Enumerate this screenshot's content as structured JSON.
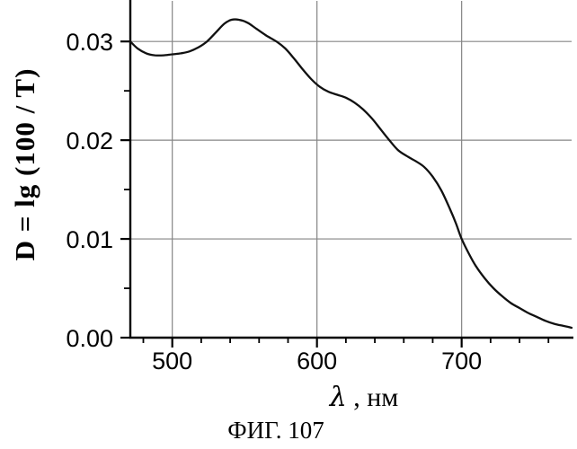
{
  "figure": {
    "caption": "ФИГ. 107"
  },
  "chart_data": {
    "type": "line",
    "title": "",
    "xlabel": "λ , нм",
    "xlabel_symbol": "λ",
    "xlabel_rest": " , нм",
    "ylabel": "D = lg (100 / T)",
    "xlim": [
      471,
      776
    ],
    "ylim": [
      0,
      0.0342
    ],
    "grid": true,
    "legend_position": "none",
    "x_ticks": [
      {
        "value": 500,
        "label": "500"
      },
      {
        "value": 600,
        "label": "600"
      },
      {
        "value": 700,
        "label": "700"
      }
    ],
    "x_minor_ticks": [
      480,
      520,
      540,
      560,
      580,
      620,
      640,
      660,
      680,
      720,
      740,
      760
    ],
    "y_ticks": [
      {
        "value": 0.0,
        "label": "0.00"
      },
      {
        "value": 0.01,
        "label": "0.01"
      },
      {
        "value": 0.02,
        "label": "0.02"
      },
      {
        "value": 0.03,
        "label": "0.03"
      }
    ],
    "y_minor_ticks": [
      0.005,
      0.015,
      0.025
    ],
    "grid_x_values": [
      500,
      600,
      700
    ],
    "grid_y_values": [
      0.01,
      0.02,
      0.03
    ],
    "series": [
      {
        "name": "spectral-absorbance-curve",
        "x": [
          471,
          476,
          482,
          488,
          494,
          500,
          506,
          512,
          518,
          524,
          530,
          536,
          541,
          546,
          552,
          558,
          565,
          572,
          578,
          584,
          590,
          596,
          602,
          608,
          614,
          620,
          626,
          632,
          638,
          644,
          650,
          656,
          662,
          668,
          674,
          680,
          686,
          692,
          696,
          700,
          705,
          710,
          716,
          722,
          728,
          734,
          740,
          746,
          752,
          758,
          764,
          770,
          776
        ],
        "y": [
          0.03,
          0.0293,
          0.0288,
          0.0286,
          0.0286,
          0.0287,
          0.0288,
          0.029,
          0.0294,
          0.03,
          0.0309,
          0.0318,
          0.0322,
          0.0322,
          0.0319,
          0.0313,
          0.0306,
          0.03,
          0.0293,
          0.0283,
          0.0272,
          0.0262,
          0.0254,
          0.0249,
          0.0246,
          0.0243,
          0.0238,
          0.0231,
          0.0222,
          0.0211,
          0.02,
          0.019,
          0.0184,
          0.0179,
          0.0173,
          0.0163,
          0.0149,
          0.013,
          0.0116,
          0.01,
          0.0085,
          0.0072,
          0.006,
          0.005,
          0.0042,
          0.0035,
          0.003,
          0.0025,
          0.0021,
          0.0017,
          0.0014,
          0.0012,
          0.001
        ]
      }
    ],
    "annotations": {
      "peak": {
        "x": 541,
        "y": 0.0322
      },
      "local_minimum": {
        "x": 491,
        "y": 0.0286
      },
      "shoulders_x": [
        620,
        670
      ]
    },
    "colors": {
      "curve": "#111111",
      "axis": "#000000",
      "grid": "#858585",
      "text": "#000000",
      "background": "#ffffff"
    }
  }
}
